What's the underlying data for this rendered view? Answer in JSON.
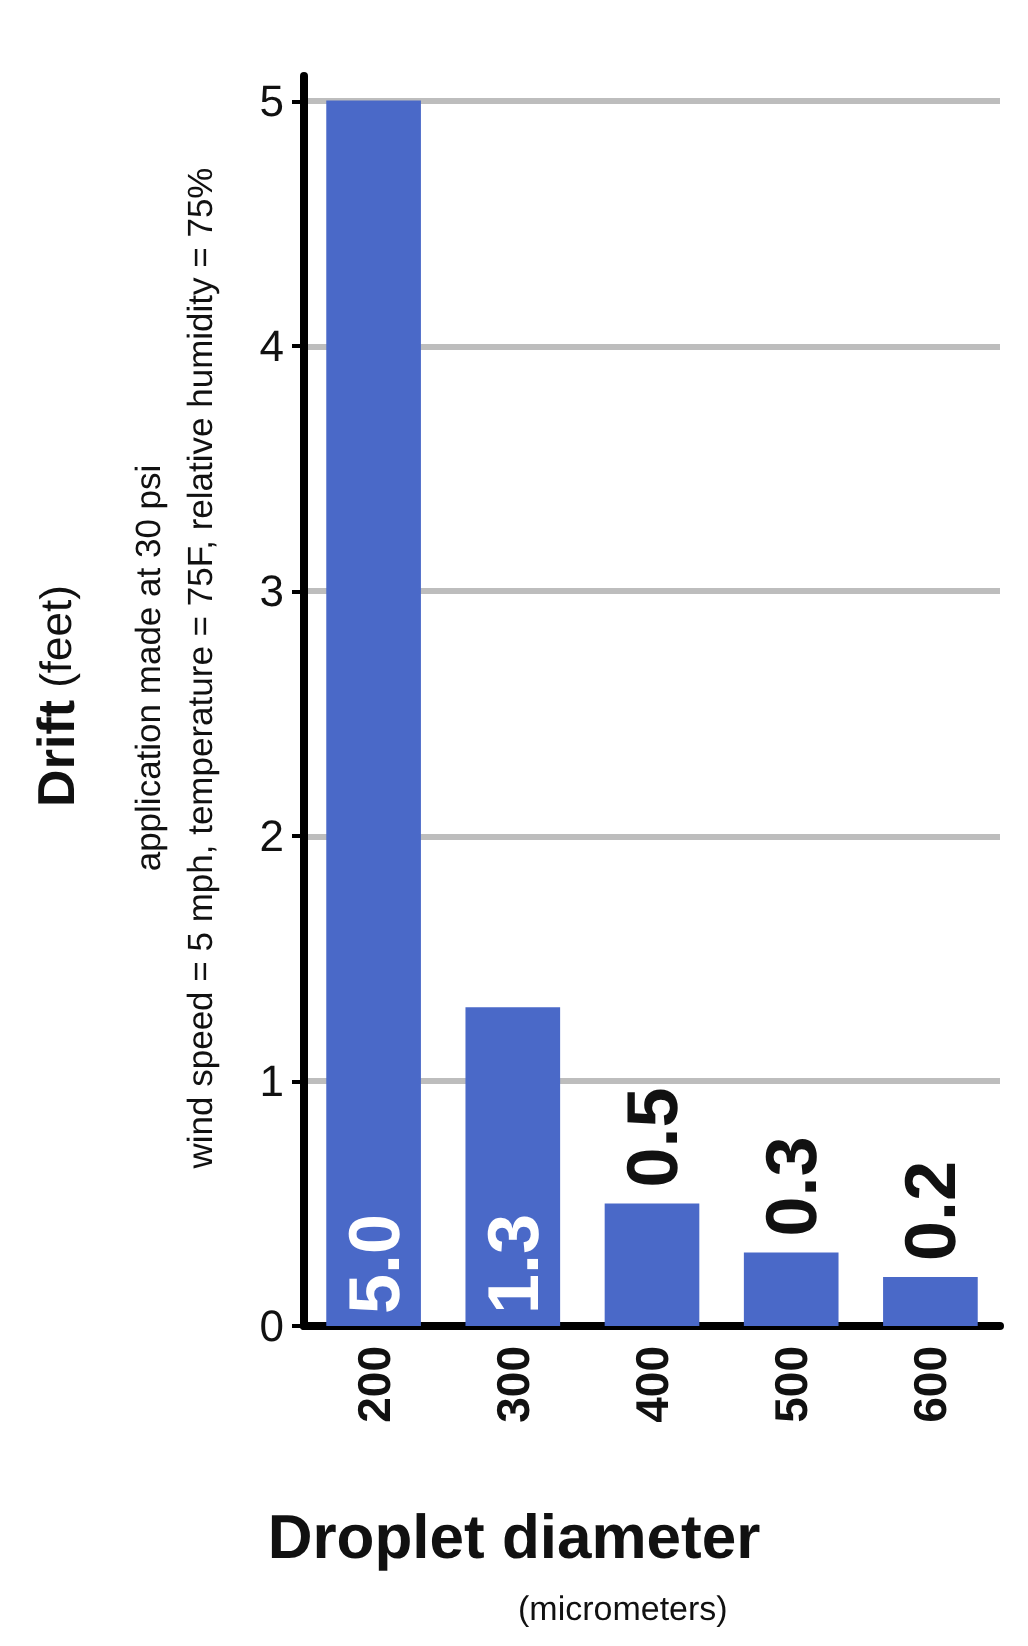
{
  "chart_data": {
    "type": "bar",
    "xlabel": "Droplet diameter",
    "ylabel": "Drift (feet)",
    "annotations": [
      "(micrometers)",
      "application made at 30 psi",
      "wind speed = 5 mph, temperature = 75F, relative humidity = 75%"
    ],
    "categories": [
      "200",
      "300",
      "400",
      "500",
      "600"
    ],
    "values": [
      5.0,
      1.3,
      0.5,
      0.3,
      0.2
    ],
    "value_labels": [
      "5.0",
      "1.3",
      "0.5",
      "0.3",
      "0.2"
    ],
    "color": "#4a69c8",
    "ylim": [
      0,
      5.1
    ],
    "yticks": [
      0,
      1,
      2,
      3,
      4,
      5
    ],
    "grid": "y"
  }
}
